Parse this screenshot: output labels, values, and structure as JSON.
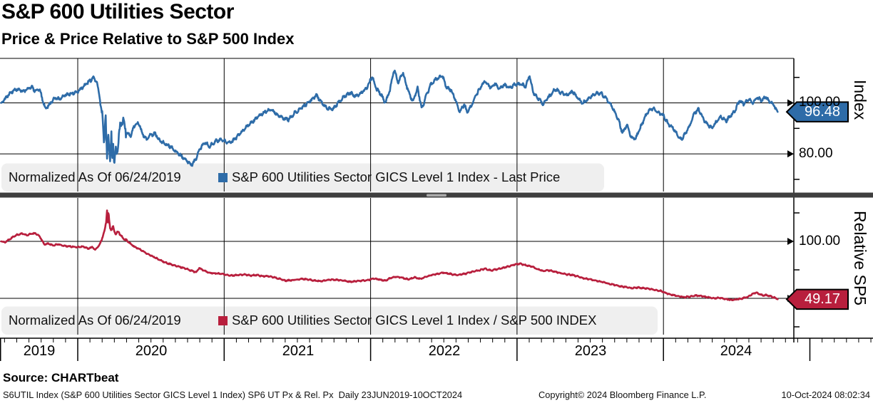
{
  "title": "S&P 600 Utilities Sector",
  "subtitle": "Price & Price Relative to S&P 500 Index",
  "source_line": "Source: CHARTbeat",
  "footer": {
    "left": "S6UTIL Index (S&P 600 Utilities Sector GICS Level 1 Index) SP6 UT Px & Rel. Px  Daily 23JUN2019-10OCT2024",
    "center": "Copyright© 2024 Bloomberg Finance L.P.",
    "right": "10-Oct-2024 08:02:34"
  },
  "colors": {
    "blue": "#2e6ca8",
    "red": "#b81f3d",
    "legend_bg": "#efefef",
    "grid": "#000000",
    "separator": "#3f3f3f",
    "handle": "#ababab"
  },
  "xaxis": {
    "years": [
      "2019",
      "2020",
      "2021",
      "2022",
      "2023",
      "2024"
    ]
  },
  "panels": {
    "top": {
      "axis_title": "Index",
      "legend_prefix": "Normalized As Of 06/24/2019",
      "legend_series": "S&P 600 Utilities Sector GICS Level 1 Index - Last Price",
      "tick_labels": [
        "100.00",
        "80.00"
      ],
      "badge": "96.48"
    },
    "bottom": {
      "axis_title": "Relative SP5",
      "legend_prefix": "Normalized As Of 06/24/2019",
      "legend_series": "S&P 600 Utilities Sector GICS Level 1 Index / S&P 500 INDEX",
      "tick_labels": [
        "100.00"
      ],
      "badge": "49.17"
    }
  },
  "chart_data": [
    {
      "type": "line",
      "name": "S&P 600 Utilities Sector GICS Level 1 Index - Last Price",
      "panel": "top",
      "color": "#2e6ca8",
      "x_unit": "decimal_year",
      "x_range": [
        2019.477,
        2024.78
      ],
      "ylim": [
        76,
        117.5
      ],
      "grid_values": [
        100,
        80
      ],
      "minor_tick_values": [
        110,
        90,
        70
      ],
      "last_value": 96.48,
      "points": [
        [
          2019.48,
          100
        ],
        [
          2019.51,
          102
        ],
        [
          2019.54,
          104
        ],
        [
          2019.57,
          105
        ],
        [
          2019.6,
          105.5
        ],
        [
          2019.63,
          104.5
        ],
        [
          2019.66,
          105.8
        ],
        [
          2019.69,
          106
        ],
        [
          2019.71,
          104.5
        ],
        [
          2019.74,
          105.5
        ],
        [
          2019.76,
          101
        ],
        [
          2019.78,
          97.8
        ],
        [
          2019.81,
          99.5
        ],
        [
          2019.84,
          102
        ],
        [
          2019.87,
          101.5
        ],
        [
          2019.91,
          103
        ],
        [
          2019.95,
          103.5
        ],
        [
          2020.0,
          104.5
        ],
        [
          2020.04,
          106.5
        ],
        [
          2020.08,
          108.5
        ],
        [
          2020.11,
          110
        ],
        [
          2020.13,
          108
        ],
        [
          2020.15,
          102
        ],
        [
          2020.17,
          93
        ],
        [
          2020.18,
          85
        ],
        [
          2020.19,
          95
        ],
        [
          2020.2,
          78
        ],
        [
          2020.21,
          90
        ],
        [
          2020.22,
          76
        ],
        [
          2020.23,
          87
        ],
        [
          2020.235,
          78
        ],
        [
          2020.24,
          86
        ],
        [
          2020.25,
          75.5
        ],
        [
          2020.26,
          83
        ],
        [
          2020.27,
          80
        ],
        [
          2020.29,
          91
        ],
        [
          2020.31,
          94
        ],
        [
          2020.33,
          88.5
        ],
        [
          2020.36,
          87
        ],
        [
          2020.39,
          91.5
        ],
        [
          2020.42,
          92
        ],
        [
          2020.44,
          88
        ],
        [
          2020.47,
          85.5
        ],
        [
          2020.5,
          87.5
        ],
        [
          2020.53,
          88
        ],
        [
          2020.56,
          85
        ],
        [
          2020.6,
          84
        ],
        [
          2020.64,
          82.5
        ],
        [
          2020.68,
          80.5
        ],
        [
          2020.72,
          78.5
        ],
        [
          2020.75,
          77
        ],
        [
          2020.78,
          75.5
        ],
        [
          2020.81,
          78.5
        ],
        [
          2020.84,
          82.5
        ],
        [
          2020.87,
          84.5
        ],
        [
          2020.9,
          83
        ],
        [
          2020.94,
          85
        ],
        [
          2020.98,
          85.5
        ],
        [
          2021.02,
          84.5
        ],
        [
          2021.06,
          85
        ],
        [
          2021.1,
          87.5
        ],
        [
          2021.15,
          90.5
        ],
        [
          2021.2,
          93
        ],
        [
          2021.24,
          95
        ],
        [
          2021.28,
          96.5
        ],
        [
          2021.32,
          97.5
        ],
        [
          2021.36,
          95.5
        ],
        [
          2021.4,
          94
        ],
        [
          2021.44,
          93.5
        ],
        [
          2021.48,
          96
        ],
        [
          2021.52,
          97.5
        ],
        [
          2021.56,
          99.5
        ],
        [
          2021.6,
          101.5
        ],
        [
          2021.63,
          103
        ],
        [
          2021.66,
          100.5
        ],
        [
          2021.7,
          98
        ],
        [
          2021.74,
          97.5
        ],
        [
          2021.78,
          100
        ],
        [
          2021.82,
          102.5
        ],
        [
          2021.86,
          104
        ],
        [
          2021.9,
          102.5
        ],
        [
          2021.94,
          104
        ],
        [
          2021.98,
          106.5
        ],
        [
          2022.01,
          110.5
        ],
        [
          2022.04,
          105.5
        ],
        [
          2022.07,
          103.5
        ],
        [
          2022.1,
          100
        ],
        [
          2022.13,
          104.5
        ],
        [
          2022.16,
          113
        ],
        [
          2022.19,
          108
        ],
        [
          2022.22,
          112
        ],
        [
          2022.26,
          104
        ],
        [
          2022.29,
          100.5
        ],
        [
          2022.32,
          106
        ],
        [
          2022.35,
          97.5
        ],
        [
          2022.38,
          103
        ],
        [
          2022.41,
          107
        ],
        [
          2022.45,
          109.5
        ],
        [
          2022.49,
          110.5
        ],
        [
          2022.52,
          106
        ],
        [
          2022.55,
          105
        ],
        [
          2022.58,
          101
        ],
        [
          2022.61,
          96.5
        ],
        [
          2022.64,
          99.5
        ],
        [
          2022.66,
          96
        ],
        [
          2022.69,
          99
        ],
        [
          2022.72,
          103
        ],
        [
          2022.75,
          106
        ],
        [
          2022.78,
          108.5
        ],
        [
          2022.82,
          106
        ],
        [
          2022.85,
          107.5
        ],
        [
          2022.88,
          105.5
        ],
        [
          2022.91,
          107
        ],
        [
          2022.95,
          106
        ],
        [
          2022.98,
          107
        ],
        [
          2023.02,
          107.5
        ],
        [
          2023.06,
          106.5
        ],
        [
          2023.085,
          111
        ],
        [
          2023.11,
          104
        ],
        [
          2023.14,
          102
        ],
        [
          2023.18,
          99.5
        ],
        [
          2023.22,
          102.5
        ],
        [
          2023.26,
          105.5
        ],
        [
          2023.3,
          104
        ],
        [
          2023.34,
          103
        ],
        [
          2023.38,
          104.5
        ],
        [
          2023.42,
          101.5
        ],
        [
          2023.45,
          100
        ],
        [
          2023.49,
          101.5
        ],
        [
          2023.53,
          103.5
        ],
        [
          2023.57,
          104
        ],
        [
          2023.61,
          101.5
        ],
        [
          2023.64,
          99.5
        ],
        [
          2023.67,
          96
        ],
        [
          2023.7,
          92
        ],
        [
          2023.72,
          88
        ],
        [
          2023.75,
          91.5
        ],
        [
          2023.78,
          86.5
        ],
        [
          2023.81,
          86
        ],
        [
          2023.84,
          90
        ],
        [
          2023.87,
          94
        ],
        [
          2023.9,
          97
        ],
        [
          2023.93,
          98
        ],
        [
          2023.96,
          96.5
        ],
        [
          2024.0,
          95
        ],
        [
          2024.03,
          92
        ],
        [
          2024.06,
          90.5
        ],
        [
          2024.09,
          88
        ],
        [
          2024.12,
          85.5
        ],
        [
          2024.15,
          88
        ],
        [
          2024.18,
          91
        ],
        [
          2024.21,
          96
        ],
        [
          2024.24,
          97.5
        ],
        [
          2024.27,
          94
        ],
        [
          2024.3,
          91.5
        ],
        [
          2024.33,
          90
        ],
        [
          2024.36,
          92.5
        ],
        [
          2024.39,
          94.5
        ],
        [
          2024.43,
          93
        ],
        [
          2024.46,
          95
        ],
        [
          2024.49,
          97
        ],
        [
          2024.52,
          101
        ],
        [
          2024.55,
          99.5
        ],
        [
          2024.58,
          101.5
        ],
        [
          2024.61,
          100
        ],
        [
          2024.64,
          102
        ],
        [
          2024.67,
          101
        ],
        [
          2024.7,
          102.5
        ],
        [
          2024.72,
          100.5
        ],
        [
          2024.75,
          99.5
        ],
        [
          2024.78,
          96.48
        ]
      ]
    },
    {
      "type": "line",
      "name": "S&P 600 Utilities Sector GICS Level 1 Index / S&P 500 INDEX",
      "panel": "bottom",
      "color": "#b81f3d",
      "x_unit": "decimal_year",
      "x_range": [
        2019.477,
        2024.78
      ],
      "ylim": [
        15,
        138
      ],
      "grid_values": [
        100,
        50
      ],
      "minor_tick_values": [
        125,
        75,
        25
      ],
      "last_value": 49.17,
      "points": [
        [
          2019.48,
          100
        ],
        [
          2019.5,
          99
        ],
        [
          2019.53,
          101.5
        ],
        [
          2019.56,
          104
        ],
        [
          2019.59,
          106
        ],
        [
          2019.62,
          107
        ],
        [
          2019.65,
          105.5
        ],
        [
          2019.68,
          106.5
        ],
        [
          2019.71,
          107
        ],
        [
          2019.74,
          104.5
        ],
        [
          2019.77,
          97.5
        ],
        [
          2019.8,
          98
        ],
        [
          2019.83,
          96.5
        ],
        [
          2019.87,
          97.5
        ],
        [
          2019.91,
          96
        ],
        [
          2019.95,
          95.5
        ],
        [
          2020.0,
          95
        ],
        [
          2020.04,
          95.5
        ],
        [
          2020.07,
          93.5
        ],
        [
          2020.1,
          95
        ],
        [
          2020.12,
          92.5
        ],
        [
          2020.15,
          97
        ],
        [
          2020.17,
          104
        ],
        [
          2020.185,
          110
        ],
        [
          2020.195,
          118
        ],
        [
          2020.2,
          128
        ],
        [
          2020.205,
          114
        ],
        [
          2020.21,
          127
        ],
        [
          2020.215,
          118
        ],
        [
          2020.22,
          112
        ],
        [
          2020.23,
          110
        ],
        [
          2020.24,
          113
        ],
        [
          2020.25,
          109
        ],
        [
          2020.26,
          107
        ],
        [
          2020.28,
          108
        ],
        [
          2020.3,
          104
        ],
        [
          2020.33,
          101
        ],
        [
          2020.36,
          98
        ],
        [
          2020.39,
          95
        ],
        [
          2020.42,
          93.5
        ],
        [
          2020.45,
          91
        ],
        [
          2020.48,
          88.5
        ],
        [
          2020.51,
          87
        ],
        [
          2020.54,
          85
        ],
        [
          2020.57,
          83
        ],
        [
          2020.6,
          81.5
        ],
        [
          2020.63,
          80
        ],
        [
          2020.66,
          79
        ],
        [
          2020.7,
          77.5
        ],
        [
          2020.74,
          76
        ],
        [
          2020.78,
          74
        ],
        [
          2020.81,
          73
        ],
        [
          2020.83,
          76.5
        ],
        [
          2020.86,
          74.5
        ],
        [
          2020.9,
          72.5
        ],
        [
          2020.94,
          72
        ],
        [
          2020.98,
          71.5
        ],
        [
          2021.02,
          70.5
        ],
        [
          2021.06,
          70
        ],
        [
          2021.1,
          70.5
        ],
        [
          2021.14,
          71
        ],
        [
          2021.18,
          70
        ],
        [
          2021.22,
          70.5
        ],
        [
          2021.26,
          69.5
        ],
        [
          2021.3,
          69.5
        ],
        [
          2021.34,
          68.5
        ],
        [
          2021.38,
          67
        ],
        [
          2021.42,
          65.5
        ],
        [
          2021.46,
          66
        ],
        [
          2021.5,
          66.5
        ],
        [
          2021.54,
          67
        ],
        [
          2021.58,
          66.5
        ],
        [
          2021.62,
          65.5
        ],
        [
          2021.66,
          65
        ],
        [
          2021.7,
          66
        ],
        [
          2021.74,
          66.5
        ],
        [
          2021.78,
          66
        ],
        [
          2021.82,
          65.5
        ],
        [
          2021.86,
          64.5
        ],
        [
          2021.9,
          65
        ],
        [
          2021.94,
          65.5
        ],
        [
          2021.98,
          66
        ],
        [
          2022.02,
          67.5
        ],
        [
          2022.06,
          66.5
        ],
        [
          2022.1,
          65.5
        ],
        [
          2022.14,
          68
        ],
        [
          2022.18,
          69
        ],
        [
          2022.22,
          68
        ],
        [
          2022.26,
          66.5
        ],
        [
          2022.3,
          68.5
        ],
        [
          2022.34,
          67
        ],
        [
          2022.38,
          69
        ],
        [
          2022.42,
          70.5
        ],
        [
          2022.46,
          71.5
        ],
        [
          2022.5,
          72.5
        ],
        [
          2022.54,
          71.5
        ],
        [
          2022.58,
          70.5
        ],
        [
          2022.62,
          71
        ],
        [
          2022.66,
          72
        ],
        [
          2022.7,
          73.5
        ],
        [
          2022.74,
          74.5
        ],
        [
          2022.78,
          76
        ],
        [
          2022.82,
          74.5
        ],
        [
          2022.86,
          75.5
        ],
        [
          2022.9,
          76.5
        ],
        [
          2022.94,
          78
        ],
        [
          2022.98,
          79.5
        ],
        [
          2023.02,
          80.5
        ],
        [
          2023.06,
          79
        ],
        [
          2023.1,
          78
        ],
        [
          2023.14,
          75.5
        ],
        [
          2023.18,
          74
        ],
        [
          2023.22,
          74.5
        ],
        [
          2023.26,
          73.5
        ],
        [
          2023.3,
          72
        ],
        [
          2023.34,
          71
        ],
        [
          2023.38,
          70.5
        ],
        [
          2023.42,
          69
        ],
        [
          2023.46,
          67.5
        ],
        [
          2023.5,
          66.5
        ],
        [
          2023.54,
          65.5
        ],
        [
          2023.58,
          64.5
        ],
        [
          2023.62,
          63
        ],
        [
          2023.66,
          62
        ],
        [
          2023.7,
          60.5
        ],
        [
          2023.74,
          60
        ],
        [
          2023.78,
          59
        ],
        [
          2023.82,
          59.5
        ],
        [
          2023.86,
          59
        ],
        [
          2023.9,
          58.5
        ],
        [
          2023.94,
          57.5
        ],
        [
          2023.98,
          56.5
        ],
        [
          2024.02,
          54.5
        ],
        [
          2024.06,
          53
        ],
        [
          2024.1,
          52
        ],
        [
          2024.14,
          51
        ],
        [
          2024.18,
          51.5
        ],
        [
          2024.22,
          52.5
        ],
        [
          2024.26,
          52
        ],
        [
          2024.3,
          51
        ],
        [
          2024.34,
          50
        ],
        [
          2024.38,
          50.5
        ],
        [
          2024.42,
          49.5
        ],
        [
          2024.46,
          48.5
        ],
        [
          2024.5,
          49
        ],
        [
          2024.54,
          50
        ],
        [
          2024.58,
          51.5
        ],
        [
          2024.61,
          54
        ],
        [
          2024.63,
          55
        ],
        [
          2024.66,
          53.5
        ],
        [
          2024.68,
          52.5
        ],
        [
          2024.7,
          53
        ],
        [
          2024.72,
          52
        ],
        [
          2024.74,
          51.5
        ],
        [
          2024.76,
          50.5
        ],
        [
          2024.78,
          49.17
        ]
      ]
    }
  ]
}
